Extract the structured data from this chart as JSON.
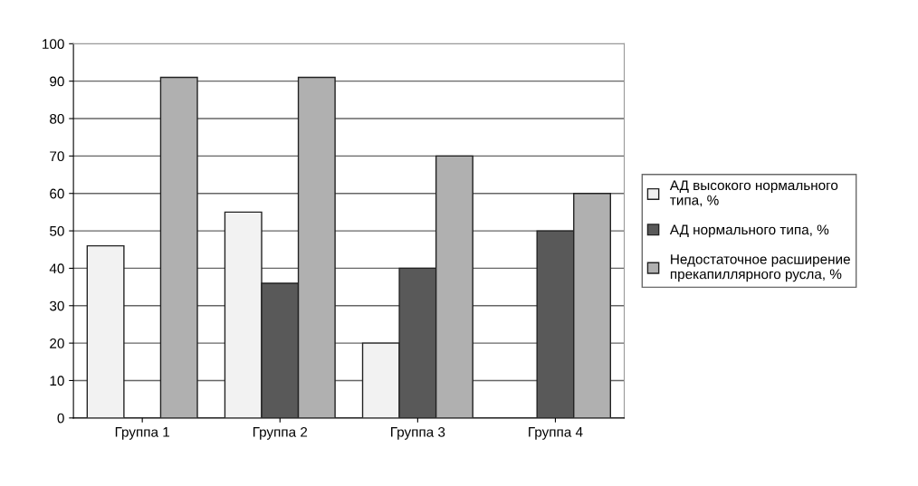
{
  "chart_data": {
    "type": "bar",
    "categories": [
      "Группа 1",
      "Группа 2",
      "Группа 3",
      "Группа 4"
    ],
    "series": [
      {
        "name": "АД высокого нормального типа, %",
        "color": "#f2f2f2",
        "values": [
          46,
          55,
          20,
          null
        ]
      },
      {
        "name": "АД нормального типа, %",
        "color": "#595959",
        "values": [
          null,
          36,
          40,
          50
        ]
      },
      {
        "name": "Недостаточное расширение прекапиллярного русла, %",
        "color": "#b0b0b0",
        "values": [
          91,
          91,
          70,
          60
        ]
      }
    ],
    "ylim": [
      0,
      100
    ],
    "yticks": [
      0,
      10,
      20,
      30,
      40,
      50,
      60,
      70,
      80,
      90,
      100
    ],
    "grid": "y",
    "legend": "right"
  }
}
